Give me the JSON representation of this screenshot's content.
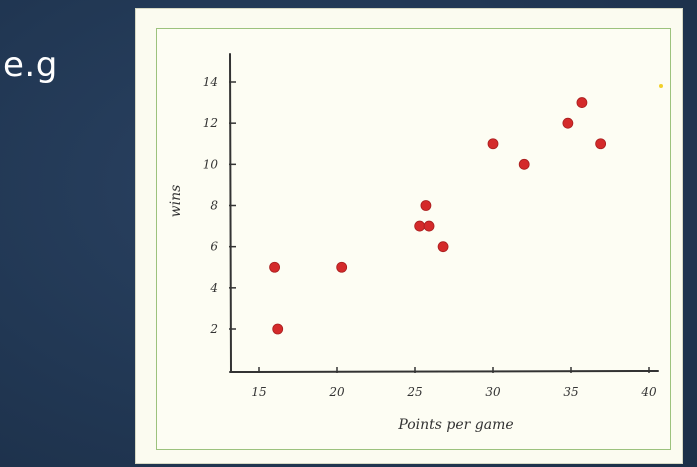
{
  "slide": {
    "label": "e.g"
  },
  "colors": {
    "background": "#21354f",
    "point": "#d42a2a",
    "frame": "#9cc27d",
    "axis": "#333333",
    "accent_dot": "#f2d02a"
  },
  "chart_data": {
    "type": "scatter",
    "title": "",
    "xlabel": "Points per game",
    "ylabel": "wins",
    "xlim": [
      13,
      41
    ],
    "ylim": [
      0,
      15
    ],
    "x_ticks": [
      15,
      20,
      25,
      30,
      35,
      40
    ],
    "y_ticks": [
      2,
      4,
      6,
      8,
      10,
      12,
      14
    ],
    "grid": false,
    "legend": "none",
    "points": [
      {
        "x": 16,
        "y": 5
      },
      {
        "x": 16.2,
        "y": 2
      },
      {
        "x": 20.3,
        "y": 5
      },
      {
        "x": 25.3,
        "y": 7
      },
      {
        "x": 25.7,
        "y": 8
      },
      {
        "x": 25.9,
        "y": 7
      },
      {
        "x": 26.8,
        "y": 6
      },
      {
        "x": 30,
        "y": 11
      },
      {
        "x": 32,
        "y": 10
      },
      {
        "x": 34.8,
        "y": 12
      },
      {
        "x": 35.7,
        "y": 13
      },
      {
        "x": 36.9,
        "y": 11
      }
    ]
  }
}
